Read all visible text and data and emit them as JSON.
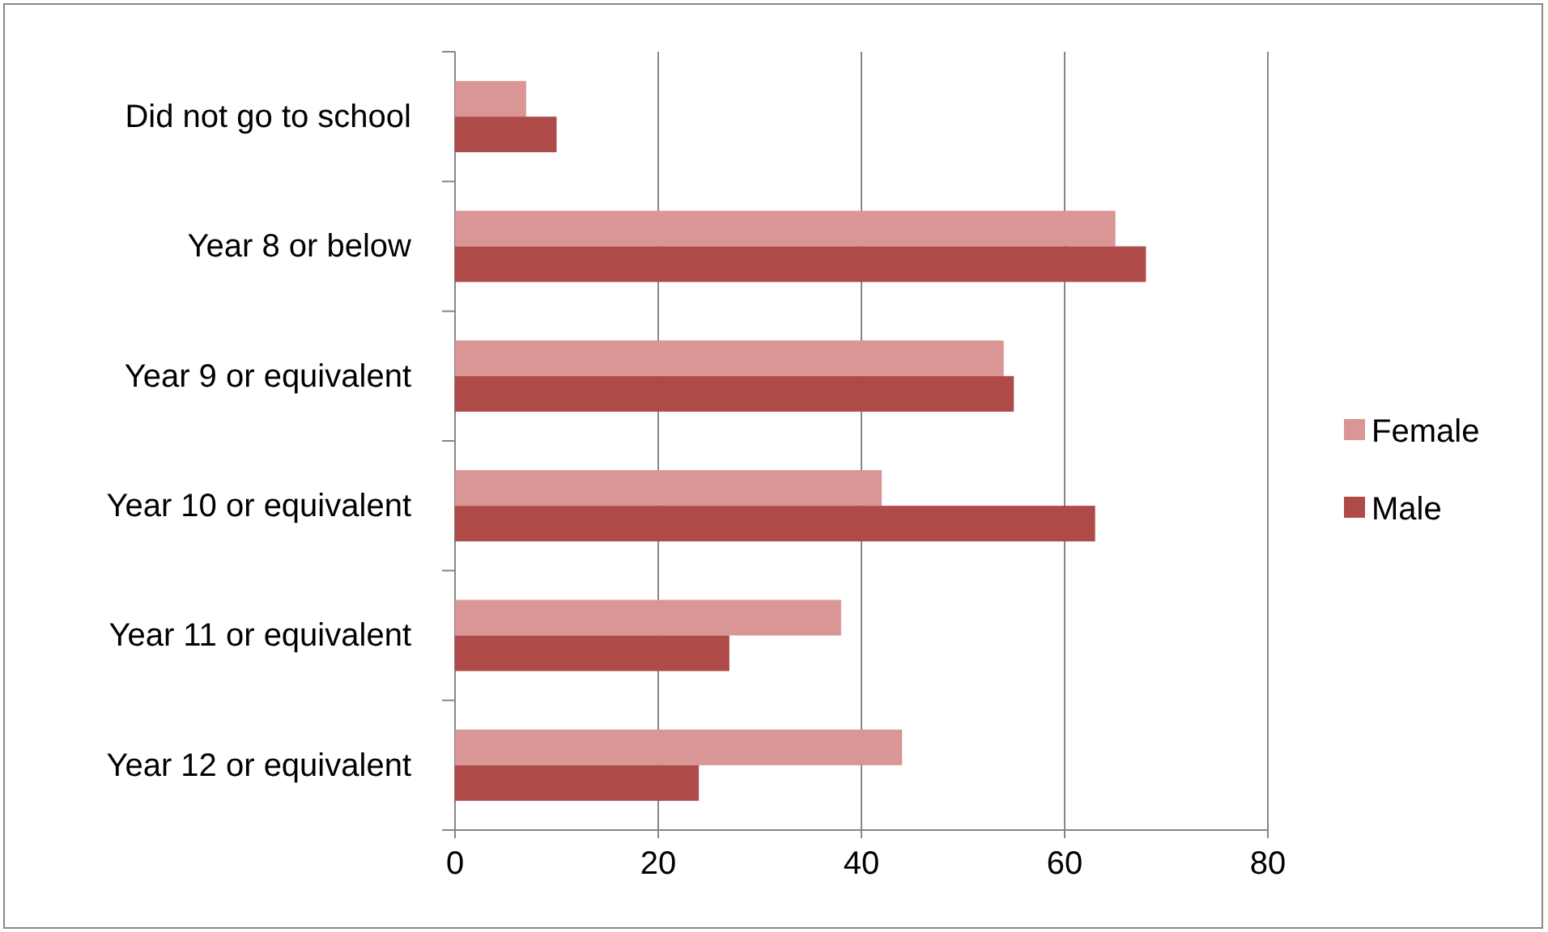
{
  "chart_data": {
    "type": "bar",
    "orientation": "horizontal",
    "categories": [
      "Did not go to school",
      "Year 8 or below",
      "Year 9 or equivalent",
      "Year 10 or equivalent",
      "Year 11 or equivalent",
      "Year 12 or equivalent"
    ],
    "series": [
      {
        "name": "Female",
        "color": "#d99694",
        "values": [
          7,
          65,
          54,
          42,
          38,
          44
        ]
      },
      {
        "name": "Male",
        "color": "#ae4a48",
        "values": [
          10,
          68,
          55,
          63,
          27,
          24
        ]
      }
    ],
    "xlim": [
      0,
      80
    ],
    "xticks": [
      0,
      20,
      40,
      60,
      80
    ],
    "grid": "x",
    "legend": "right"
  }
}
